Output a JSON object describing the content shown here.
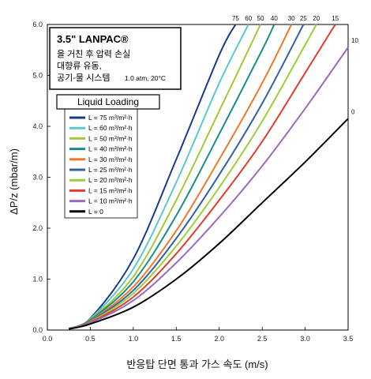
{
  "chart_data": {
    "type": "line",
    "title_lines": [
      "3.5\" LANPAC®",
      "을 거친 후 압력 손실",
      "대향류 유동,",
      "공기-물 시스템"
    ],
    "title_suffix": "1.0 atm, 20°C",
    "xlabel": "반응탑 단면 통과 가스 속도 (m/s)",
    "ylabel": "ΔP/z (mbar/m)",
    "xlim": [
      0,
      3.5
    ],
    "ylim": [
      0,
      6.0
    ],
    "x_ticks": [
      "0.0",
      "0.5",
      "1.0",
      "1.5",
      "2.0",
      "2.5",
      "3.0",
      "3.5"
    ],
    "y_ticks": [
      "0.0",
      "1.0",
      "2.0",
      "3.0",
      "4.0",
      "5.0",
      "6.0"
    ],
    "grid": false,
    "legend_title": "Liquid Loading",
    "legend_placement": "left-middle",
    "series": [
      {
        "name": "L = 75 m³/m²·h",
        "top_label": "75",
        "color": "#1a3a8c",
        "x": [
          0.25,
          0.5,
          1.0,
          1.5,
          2.0,
          2.19
        ],
        "y": [
          0.03,
          0.23,
          1.4,
          3.35,
          5.4,
          6.0
        ]
      },
      {
        "name": "L = 60 m³/m²·h",
        "top_label": "60",
        "color": "#5bc8d0",
        "x": [
          0.25,
          0.5,
          1.0,
          1.5,
          2.0,
          2.34
        ],
        "y": [
          0.03,
          0.22,
          1.2,
          2.9,
          4.85,
          6.0
        ]
      },
      {
        "name": "L = 50 m³/m²·h",
        "top_label": "50",
        "color": "#a6c63a",
        "x": [
          0.25,
          0.5,
          1.0,
          1.5,
          2.0,
          2.48
        ],
        "y": [
          0.03,
          0.21,
          1.05,
          2.55,
          4.3,
          6.0
        ]
      },
      {
        "name": "L = 40 m³/m²·h",
        "top_label": "40",
        "color": "#1a8a8a",
        "x": [
          0.25,
          0.5,
          1.0,
          1.5,
          2.0,
          2.5,
          2.64
        ],
        "y": [
          0.03,
          0.2,
          0.95,
          2.25,
          3.85,
          5.5,
          6.0
        ]
      },
      {
        "name": "L = 30 m³/m²·h",
        "top_label": "30",
        "color": "#f0782a",
        "x": [
          0.25,
          0.5,
          1.0,
          1.5,
          2.0,
          2.5,
          2.84
        ],
        "y": [
          0.03,
          0.18,
          0.85,
          1.95,
          3.35,
          4.85,
          6.0
        ]
      },
      {
        "name": "L = 25 m³/m²·h",
        "top_label": "25",
        "color": "#3060a8",
        "x": [
          0.25,
          0.5,
          1.0,
          1.5,
          2.0,
          2.5,
          2.98
        ],
        "y": [
          0.02,
          0.17,
          0.78,
          1.8,
          3.05,
          4.45,
          6.0
        ]
      },
      {
        "name": "L = 20 m³/m²·h",
        "top_label": "20",
        "color": "#9ad03a",
        "x": [
          0.25,
          0.5,
          1.0,
          1.5,
          2.0,
          2.5,
          3.0,
          3.13
        ],
        "y": [
          0.02,
          0.16,
          0.72,
          1.65,
          2.8,
          4.1,
          5.6,
          6.0
        ]
      },
      {
        "name": "L = 15 m³/m²·h",
        "top_label": "15",
        "color": "#e03c2e",
        "x": [
          0.25,
          0.5,
          1.0,
          1.5,
          2.0,
          2.5,
          3.0,
          3.35
        ],
        "y": [
          0.02,
          0.15,
          0.65,
          1.5,
          2.55,
          3.7,
          5.05,
          6.0
        ]
      },
      {
        "name": "L = 10 m³/m²·h",
        "top_label": "10",
        "color": "#9a6abf",
        "x": [
          0.25,
          0.5,
          1.0,
          1.5,
          2.0,
          2.5,
          3.0,
          3.5
        ],
        "y": [
          0.02,
          0.14,
          0.58,
          1.32,
          2.22,
          3.22,
          4.35,
          5.55
        ]
      },
      {
        "name": "L =   0",
        "top_label": "0",
        "color": "#000000",
        "x": [
          0.25,
          0.5,
          1.0,
          1.5,
          2.0,
          2.5,
          3.0,
          3.5
        ],
        "y": [
          0.02,
          0.12,
          0.45,
          1.0,
          1.7,
          2.5,
          3.3,
          4.15
        ]
      }
    ]
  }
}
